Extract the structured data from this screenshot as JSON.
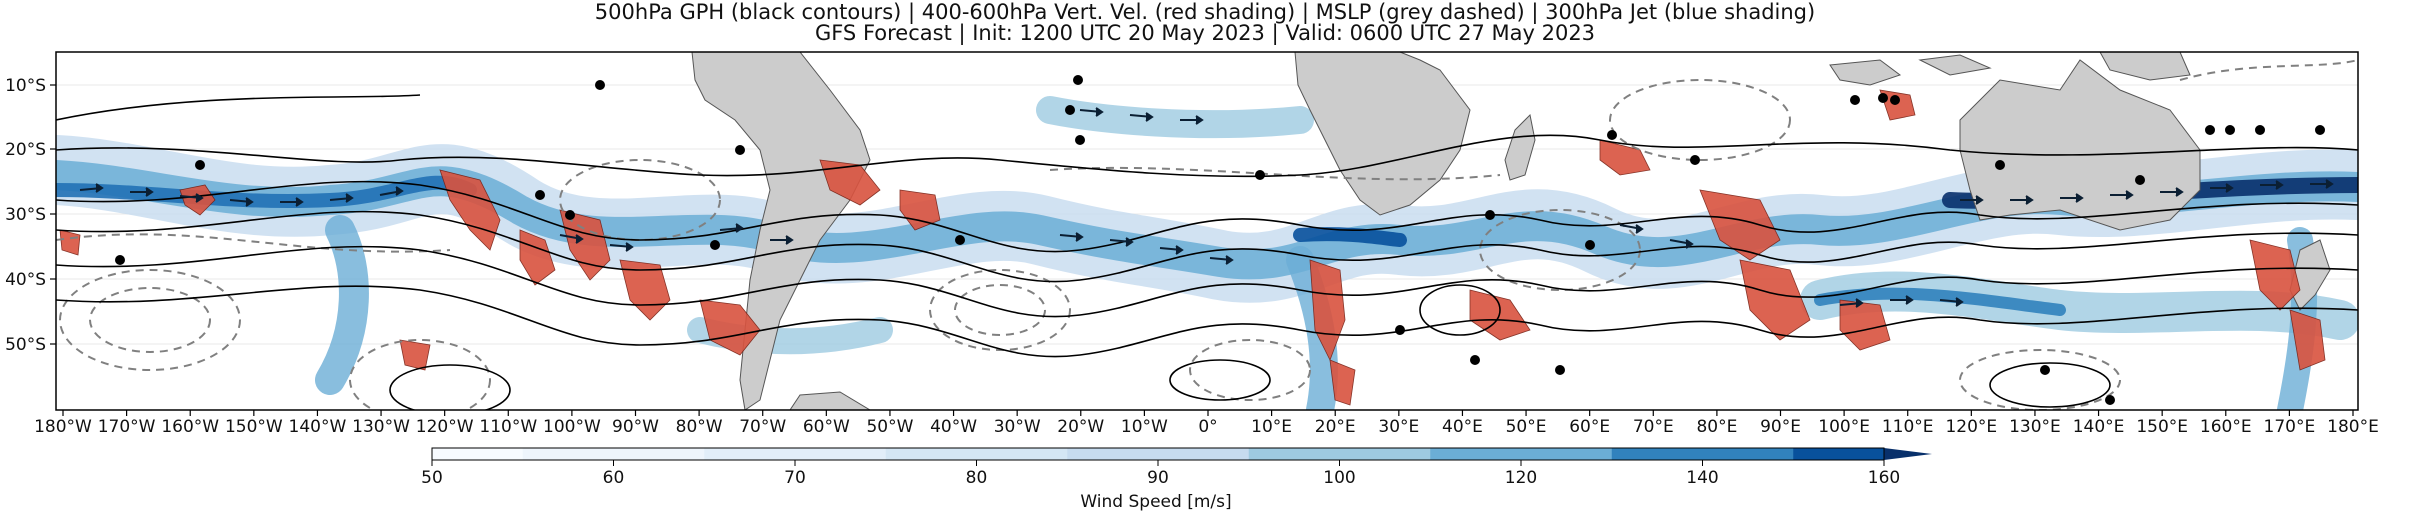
{
  "title": {
    "line1": "500hPa GPH (black contours) | 400-600hPa Vert. Vel. (red shading) | MSLP (grey dashed) | 300hPa Jet (blue shading)",
    "line2": "GFS Forecast | Init: 1200 UTC 20 May 2023 | Valid: 0600 UTC 27 May 2023"
  },
  "map": {
    "lon_ticks": [
      "180°W",
      "170°W",
      "160°W",
      "150°W",
      "140°W",
      "130°W",
      "120°W",
      "110°W",
      "100°W",
      "90°W",
      "80°W",
      "70°W",
      "60°W",
      "50°W",
      "40°W",
      "30°W",
      "20°W",
      "10°W",
      "0°",
      "10°E",
      "20°E",
      "30°E",
      "40°E",
      "50°E",
      "60°E",
      "70°E",
      "80°E",
      "90°E",
      "100°E",
      "110°E",
      "120°E",
      "130°E",
      "140°E",
      "150°E",
      "160°E",
      "170°E",
      "180°E"
    ],
    "lat_ticks": [
      "10°S",
      "20°S",
      "30°S",
      "40°S",
      "50°S"
    ],
    "colors": {
      "land": "#cccccc",
      "gph_contour": "#000000",
      "mslp_contour": "#808080",
      "vertical_velocity": "#d9533f",
      "jet_light": "#c6dbef",
      "jet_mid": "#6baed6",
      "jet_dark": "#08306b"
    },
    "features": [
      "jet-stream-shading",
      "gph-contours",
      "mslp-dashed-contours",
      "vertical-velocity-shading",
      "wind-vectors",
      "continents"
    ]
  },
  "colorbar": {
    "label": "Wind Speed [m/s]",
    "ticks": [
      "50",
      "60",
      "70",
      "80",
      "90",
      "100",
      "120",
      "140",
      "160"
    ],
    "colors": [
      "#f7fbff",
      "#eef5fc",
      "#e2eef9",
      "#d4e6f4",
      "#c6dbef",
      "#9ecae1",
      "#6baed6",
      "#3182bd",
      "#08519c",
      "#08306b"
    ]
  }
}
